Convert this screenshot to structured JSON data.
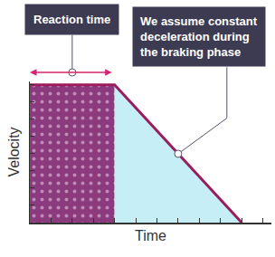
{
  "chart_data": {
    "type": "area",
    "x_label": "Time",
    "y_label": "Velocity",
    "x": [
      0,
      4,
      10
    ],
    "values": [
      8,
      8,
      0
    ],
    "color": "#9b1d5e",
    "xlim": [
      0,
      11.4
    ],
    "xticks": [
      0,
      1,
      2,
      3,
      4,
      5,
      6,
      7,
      8,
      9,
      10,
      11
    ],
    "ylim": [
      0,
      8.2
    ],
    "yticks": [
      0,
      1,
      2,
      3,
      4,
      5,
      6,
      7,
      8
    ],
    "tick_labels": false,
    "grid": false,
    "regions": [
      {
        "label": "Reaction time",
        "x": [
          0,
          4
        ],
        "color": "#8b3a7e"
      },
      {
        "x": [
          4,
          10
        ],
        "color": "#c6eef6"
      }
    ],
    "annotations": [
      {
        "text": "We assume constant deceleration during the braking phase",
        "x": 7,
        "y": 4
      }
    ]
  }
}
